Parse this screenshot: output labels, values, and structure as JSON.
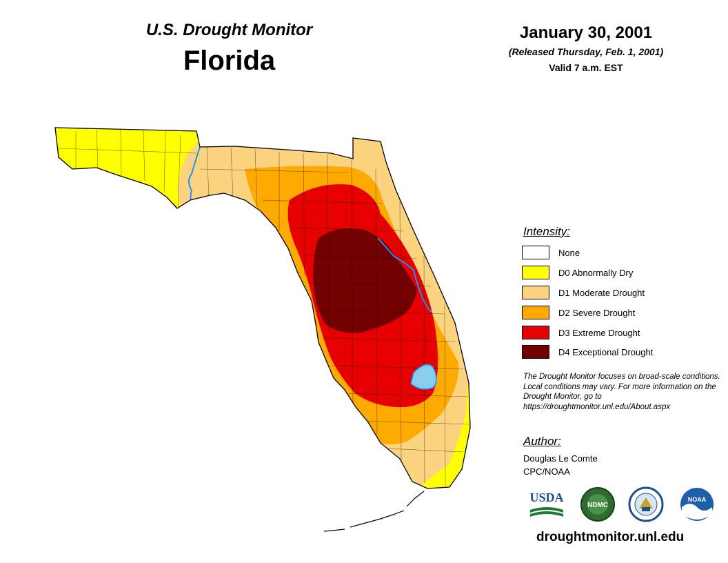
{
  "header": {
    "title": "U.S. Drought Monitor",
    "state": "Florida",
    "date": "January 30, 2001",
    "released": "(Released Thursday, Feb. 1, 2001)",
    "valid": "Valid 7 a.m. EST"
  },
  "legend": {
    "title": "Intensity:",
    "items": [
      {
        "label": "None",
        "color": "#ffffff"
      },
      {
        "label": "D0 Abnormally Dry",
        "color": "#ffff00"
      },
      {
        "label": "D1 Moderate Drought",
        "color": "#fcd37f"
      },
      {
        "label": "D2 Severe Drought",
        "color": "#ffaa00"
      },
      {
        "label": "D3 Extreme Drought",
        "color": "#e60000"
      },
      {
        "label": "D4 Exceptional Drought",
        "color": "#730000"
      }
    ]
  },
  "note": "The Drought Monitor focuses on broad-scale conditions. Local conditions may vary. For more information on the Drought Monitor, go to https://droughtmonitor.unl.edu/About.aspx",
  "author": {
    "title": "Author:",
    "name": "Douglas Le Comte",
    "org": "CPC/NOAA"
  },
  "logos": {
    "usda": "USDA",
    "ndmc": "NDMC",
    "noaa": "NOAA"
  },
  "footer": {
    "url": "droughtmonitor.unl.edu"
  },
  "water_color": "#87ceeb",
  "river_color": "#1e90ff"
}
